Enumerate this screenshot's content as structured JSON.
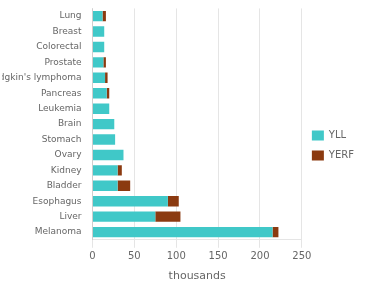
{
  "chart_data": {
    "type": "bar",
    "orientation": "horizontal",
    "stacked": true,
    "categories": [
      "Lung",
      "Breast",
      "Colorectal",
      "Prostate",
      "Non-Hodgkin's lymphoma",
      "Pancreas",
      "Leukemia",
      "Brain",
      "Stomach",
      "Ovary",
      "Kidney",
      "Bladder",
      "Esophagus",
      "Liver",
      "Melanoma"
    ],
    "series": [
      {
        "name": "YLL",
        "color": "#40c8c8",
        "values": [
          12,
          14,
          14,
          13,
          15,
          17,
          20,
          26,
          27,
          37,
          30,
          30,
          90,
          75,
          215
        ]
      },
      {
        "name": "YERF",
        "color": "#8b3a10",
        "values": [
          4,
          0,
          0,
          3,
          3,
          3,
          0,
          0,
          0,
          0,
          5,
          15,
          13,
          30,
          7
        ]
      }
    ],
    "xlabel": "thousands",
    "xlim": [
      0,
      250
    ],
    "xticks": [
      0,
      50,
      100,
      150,
      200,
      250
    ],
    "grid": true,
    "legend": "right"
  }
}
